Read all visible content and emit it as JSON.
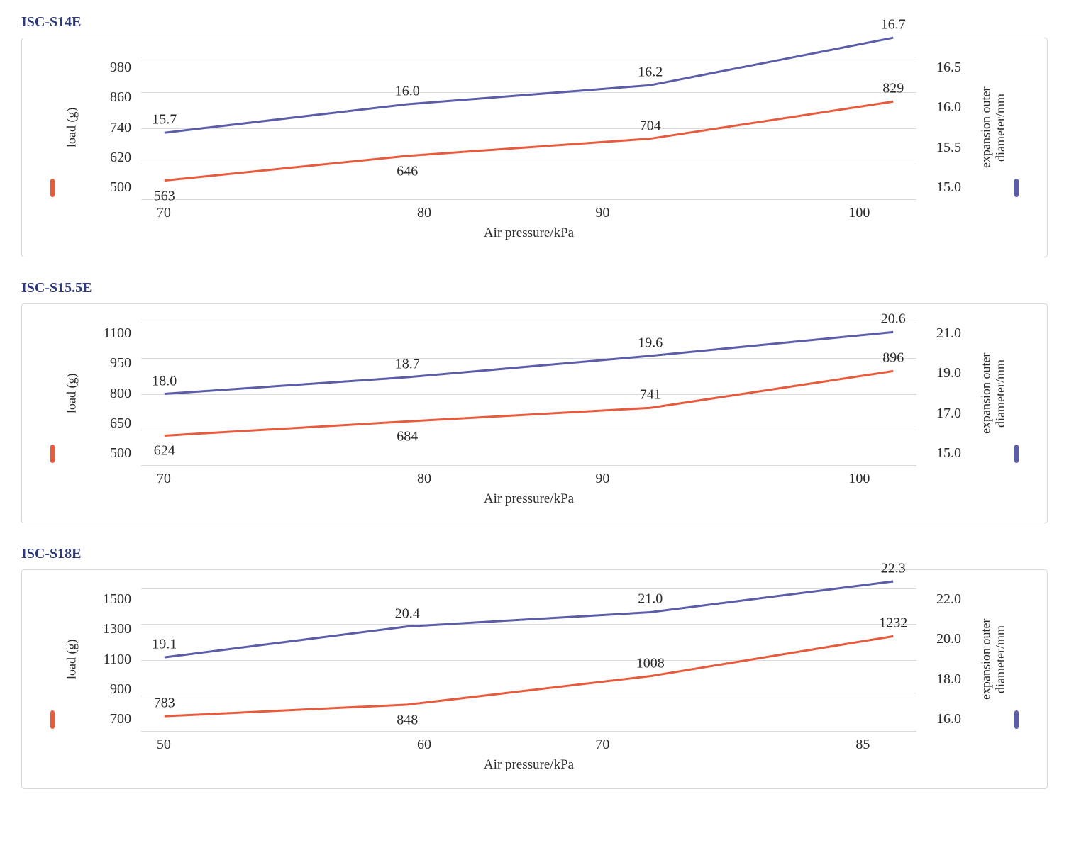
{
  "global": {
    "title_color": "#2f3a7a",
    "frame_border_color": "#d6d8dc",
    "text_color": "#2a2a2a",
    "grid_color": "#d9dbde",
    "background_color": "#ffffff",
    "font_family": "Georgia, 'Times New Roman', serif",
    "title_fontsize": 20,
    "tick_fontsize": 20,
    "axis_label_fontsize": 18,
    "data_label_fontsize": 20,
    "line_width": 3
  },
  "charts": [
    {
      "id": "s14e",
      "title": "ISC-S14E",
      "type": "line",
      "x_label": "Air pressure/kPa",
      "x_ticks": [
        70,
        80,
        90,
        100
      ],
      "left": {
        "label": "load (g)",
        "color": "#e85a3c",
        "ylim": [
          500,
          980
        ],
        "yticks": [
          980,
          860,
          740,
          620,
          500
        ],
        "values": [
          563,
          646,
          704,
          829
        ],
        "label_positions": [
          {
            "x": 0,
            "y_offset": 22,
            "text": "563"
          },
          {
            "x": 1,
            "y_offset": 22,
            "text": "646"
          },
          {
            "x": 2,
            "y_offset": -18,
            "text": "704"
          },
          {
            "x": 3,
            "y_offset": -18,
            "text": "829"
          }
        ]
      },
      "right": {
        "label": "expansion outer diameter/mm",
        "color": "#5b5da8",
        "ylim": [
          15.0,
          16.5
        ],
        "yticks": [
          16.5,
          16.0,
          15.5,
          15.0
        ],
        "values": [
          15.7,
          16.0,
          16.2,
          16.7
        ],
        "label_positions": [
          {
            "x": 0,
            "y_offset": -18,
            "text": "15.7"
          },
          {
            "x": 1,
            "y_offset": -18,
            "text": "16.0"
          },
          {
            "x": 2,
            "y_offset": -18,
            "text": "16.2"
          },
          {
            "x": 3,
            "y_offset": -18,
            "text": "16.7"
          }
        ]
      }
    },
    {
      "id": "s155e",
      "title": "ISC-S15.5E",
      "type": "line",
      "x_label": "Air pressure/kPa",
      "x_ticks": [
        70,
        80,
        90,
        100
      ],
      "left": {
        "label": "load (g)",
        "color": "#e85a3c",
        "ylim": [
          500,
          1100
        ],
        "yticks": [
          1100,
          950,
          800,
          650,
          500
        ],
        "values": [
          624,
          684,
          741,
          896
        ],
        "label_positions": [
          {
            "x": 0,
            "y_offset": 22,
            "text": "624"
          },
          {
            "x": 1,
            "y_offset": 22,
            "text": "684"
          },
          {
            "x": 2,
            "y_offset": -18,
            "text": "741"
          },
          {
            "x": 3,
            "y_offset": -18,
            "text": "896"
          }
        ]
      },
      "right": {
        "label": "expansion outer diameter/mm",
        "color": "#5b5da8",
        "ylim": [
          15.0,
          21.0
        ],
        "yticks": [
          21.0,
          19.0,
          17.0,
          15.0
        ],
        "values": [
          18.0,
          18.7,
          19.6,
          20.6
        ],
        "label_positions": [
          {
            "x": 0,
            "y_offset": -18,
            "text": "18.0"
          },
          {
            "x": 1,
            "y_offset": -18,
            "text": "18.7"
          },
          {
            "x": 2,
            "y_offset": -18,
            "text": "19.6"
          },
          {
            "x": 3,
            "y_offset": -18,
            "text": "20.6"
          }
        ]
      }
    },
    {
      "id": "s18e",
      "title": "ISC-S18E",
      "type": "line",
      "x_label": "Air pressure/kPa",
      "x_ticks": [
        50,
        60,
        70,
        85
      ],
      "left": {
        "label": "load (g)",
        "color": "#e85a3c",
        "ylim": [
          700,
          1500
        ],
        "yticks": [
          1500,
          1300,
          1100,
          900,
          700
        ],
        "values": [
          783,
          848,
          1008,
          1232
        ],
        "label_positions": [
          {
            "x": 0,
            "y_offset": -18,
            "text": "783"
          },
          {
            "x": 1,
            "y_offset": 22,
            "text": "848"
          },
          {
            "x": 2,
            "y_offset": -18,
            "text": "1008"
          },
          {
            "x": 3,
            "y_offset": -18,
            "text": "1232"
          }
        ]
      },
      "right": {
        "label": "expansion outer diameter/mm",
        "color": "#5b5da8",
        "ylim": [
          16.0,
          22.0
        ],
        "yticks": [
          22.0,
          20.0,
          18.0,
          16.0
        ],
        "values": [
          19.1,
          20.4,
          21.0,
          22.3
        ],
        "label_positions": [
          {
            "x": 0,
            "y_offset": -18,
            "text": "19.1"
          },
          {
            "x": 1,
            "y_offset": -18,
            "text": "20.4"
          },
          {
            "x": 2,
            "y_offset": -18,
            "text": "21.0"
          },
          {
            "x": 3,
            "y_offset": -18,
            "text": "22.3"
          }
        ]
      }
    }
  ]
}
